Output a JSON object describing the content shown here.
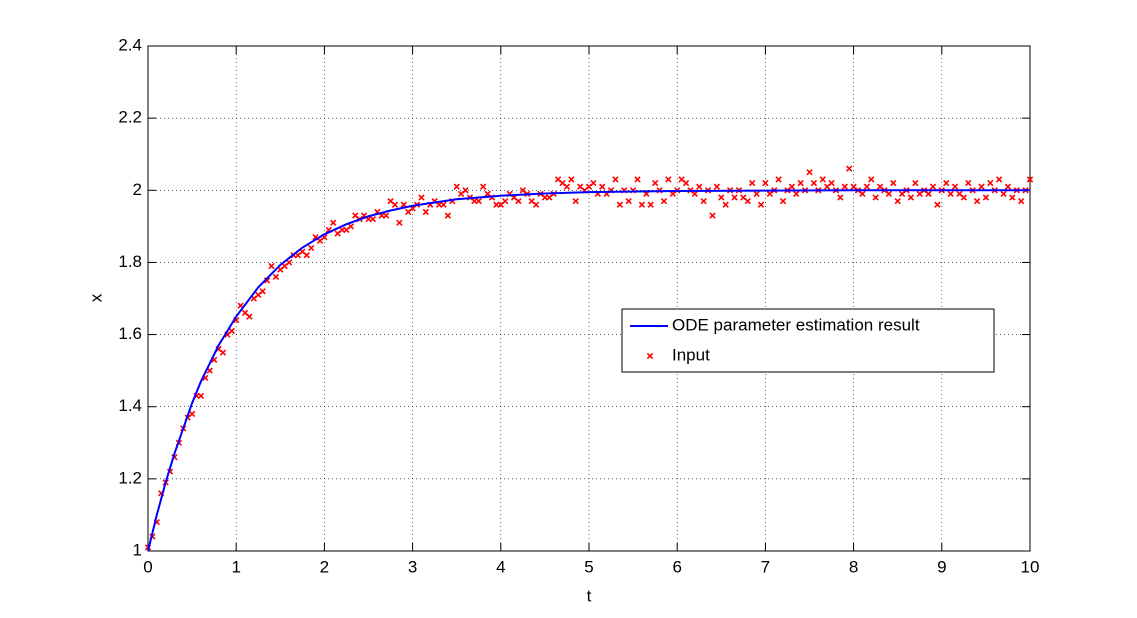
{
  "chart_data": {
    "type": "line",
    "xlabel": "t",
    "ylabel": "x",
    "xlim": [
      0,
      10
    ],
    "ylim": [
      1,
      2.4
    ],
    "xticks": [
      0,
      1,
      2,
      3,
      4,
      5,
      6,
      7,
      8,
      9,
      10
    ],
    "yticks": [
      1,
      1.2,
      1.4,
      1.6,
      1.8,
      2,
      2.2,
      2.4
    ],
    "grid": true,
    "legend": "right",
    "series": [
      {
        "name": "ODE parameter estimation result",
        "type": "line",
        "color": "#0000ff",
        "x": [
          0,
          0.1,
          0.2,
          0.3,
          0.4,
          0.5,
          0.6,
          0.7,
          0.8,
          0.9,
          1,
          1.25,
          1.5,
          1.75,
          2,
          2.25,
          2.5,
          2.75,
          3,
          3.5,
          4,
          4.5,
          5,
          6,
          7,
          8,
          9,
          10
        ],
        "values": [
          1.0,
          1.1,
          1.19,
          1.27,
          1.34,
          1.41,
          1.47,
          1.52,
          1.57,
          1.61,
          1.65,
          1.731,
          1.793,
          1.841,
          1.878,
          1.906,
          1.928,
          1.944,
          1.957,
          1.975,
          1.985,
          1.991,
          1.995,
          1.998,
          1.999,
          2.0,
          2.0,
          2.0
        ]
      },
      {
        "name": "Input",
        "type": "scatter",
        "color": "#ff0000",
        "x": [
          0,
          0.05,
          0.1,
          0.15,
          0.2,
          0.25,
          0.3,
          0.35,
          0.4,
          0.45,
          0.5,
          0.55,
          0.6,
          0.65,
          0.7,
          0.75,
          0.8,
          0.85,
          0.9,
          0.95,
          1,
          1.05,
          1.1,
          1.15,
          1.2,
          1.25,
          1.3,
          1.35,
          1.4,
          1.45,
          1.5,
          1.55,
          1.6,
          1.65,
          1.7,
          1.75,
          1.8,
          1.85,
          1.9,
          1.95,
          2,
          2.05,
          2.1,
          2.15,
          2.2,
          2.25,
          2.3,
          2.35,
          2.4,
          2.45,
          2.5,
          2.55,
          2.6,
          2.65,
          2.7,
          2.75,
          2.8,
          2.85,
          2.9,
          2.95,
          3,
          3.05,
          3.1,
          3.15,
          3.2,
          3.25,
          3.3,
          3.35,
          3.4,
          3.45,
          3.5,
          3.55,
          3.6,
          3.65,
          3.7,
          3.75,
          3.8,
          3.85,
          3.9,
          3.95,
          4,
          4.05,
          4.1,
          4.15,
          4.2,
          4.25,
          4.3,
          4.35,
          4.4,
          4.45,
          4.5,
          4.55,
          4.6,
          4.65,
          4.7,
          4.75,
          4.8,
          4.85,
          4.9,
          4.95,
          5,
          5.05,
          5.1,
          5.15,
          5.2,
          5.25,
          5.3,
          5.35,
          5.4,
          5.45,
          5.5,
          5.55,
          5.6,
          5.65,
          5.7,
          5.75,
          5.8,
          5.85,
          5.9,
          5.95,
          6,
          6.05,
          6.1,
          6.15,
          6.2,
          6.25,
          6.3,
          6.35,
          6.4,
          6.45,
          6.5,
          6.55,
          6.6,
          6.65,
          6.7,
          6.75,
          6.8,
          6.85,
          6.9,
          6.95,
          7,
          7.05,
          7.1,
          7.15,
          7.2,
          7.25,
          7.3,
          7.35,
          7.4,
          7.45,
          7.5,
          7.55,
          7.6,
          7.65,
          7.7,
          7.75,
          7.8,
          7.85,
          7.9,
          7.95,
          8,
          8.05,
          8.1,
          8.15,
          8.2,
          8.25,
          8.3,
          8.35,
          8.4,
          8.45,
          8.5,
          8.55,
          8.6,
          8.65,
          8.7,
          8.75,
          8.8,
          8.85,
          8.9,
          8.95,
          9,
          9.05,
          9.1,
          9.15,
          9.2,
          9.25,
          9.3,
          9.35,
          9.4,
          9.45,
          9.5,
          9.55,
          9.6,
          9.65,
          9.7,
          9.75,
          9.8,
          9.85,
          9.9,
          9.95,
          10
        ],
        "values": [
          1.01,
          1.04,
          1.08,
          1.16,
          1.19,
          1.22,
          1.26,
          1.3,
          1.34,
          1.37,
          1.38,
          1.43,
          1.43,
          1.48,
          1.5,
          1.53,
          1.56,
          1.55,
          1.6,
          1.61,
          1.64,
          1.68,
          1.66,
          1.65,
          1.7,
          1.71,
          1.72,
          1.75,
          1.79,
          1.76,
          1.78,
          1.79,
          1.8,
          1.82,
          1.82,
          1.83,
          1.82,
          1.84,
          1.87,
          1.86,
          1.87,
          1.89,
          1.91,
          1.88,
          1.89,
          1.89,
          1.9,
          1.93,
          1.92,
          1.93,
          1.92,
          1.92,
          1.94,
          1.93,
          1.93,
          1.97,
          1.96,
          1.91,
          1.96,
          1.94,
          1.95,
          1.96,
          1.98,
          1.94,
          1.96,
          1.97,
          1.96,
          1.96,
          1.93,
          1.97,
          2.01,
          1.99,
          2.0,
          1.98,
          1.97,
          1.97,
          2.01,
          1.99,
          1.98,
          1.96,
          1.96,
          1.97,
          1.99,
          1.98,
          1.97,
          2.0,
          1.99,
          1.97,
          1.96,
          1.99,
          1.98,
          1.98,
          1.99,
          2.03,
          2.02,
          2.01,
          2.03,
          1.97,
          2.01,
          2.0,
          2.01,
          2.02,
          1.99,
          2.01,
          1.99,
          2.0,
          2.03,
          1.96,
          2.0,
          1.97,
          2.0,
          2.03,
          1.96,
          1.99,
          1.96,
          2.02,
          2.0,
          1.97,
          2.03,
          1.99,
          2.0,
          2.03,
          2.02,
          2.0,
          1.99,
          2.01,
          1.97,
          2.0,
          1.93,
          2.01,
          1.98,
          1.96,
          2.0,
          1.98,
          2.0,
          1.98,
          1.97,
          2.02,
          1.99,
          1.96,
          2.02,
          1.99,
          2.0,
          2.03,
          1.97,
          2.0,
          2.01,
          1.99,
          2.02,
          2.0,
          2.05,
          2.02,
          2.0,
          2.03,
          2.01,
          2.02,
          2.0,
          1.98,
          2.01,
          2.06,
          2.01,
          2.0,
          1.99,
          2.01,
          2.03,
          1.98,
          2.01,
          2.0,
          1.99,
          2.02,
          1.97,
          1.99,
          2.0,
          1.98,
          2.02,
          1.99,
          2.0,
          1.99,
          2.01,
          1.96,
          2.0,
          2.02,
          1.99,
          2.01,
          1.99,
          1.98,
          2.02,
          2.0,
          1.97,
          2.01,
          1.98,
          2.02,
          2.0,
          2.03,
          1.99,
          2.01,
          1.98,
          2.0,
          1.97,
          2.0,
          2.03
        ]
      }
    ]
  }
}
